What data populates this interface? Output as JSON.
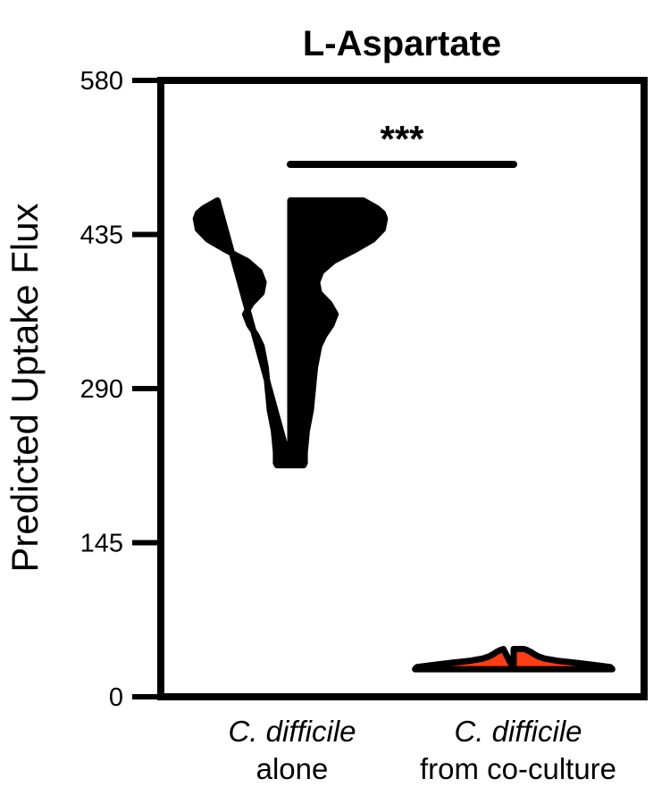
{
  "chart_data": {
    "type": "violin",
    "title": "L-Aspartate",
    "ylabel": "Predicted Uptake Flux",
    "xlabel": "",
    "ylim": [
      0,
      580
    ],
    "yticks": [
      "580",
      "435",
      "290",
      "145",
      "0"
    ],
    "categories": [
      {
        "line1": "C. difficile",
        "line2": "alone"
      },
      {
        "line1": "C. difficile",
        "line2": "from co-culture"
      }
    ],
    "series": [
      {
        "fill": "#000000",
        "range": [
          218,
          467
        ],
        "profile": [
          [
            467,
            0.71
          ],
          [
            460,
            0.84
          ],
          [
            455,
            0.9
          ],
          [
            450,
            0.92
          ],
          [
            440,
            0.9
          ],
          [
            430,
            0.8
          ],
          [
            420,
            0.62
          ],
          [
            410,
            0.42
          ],
          [
            400,
            0.3
          ],
          [
            390,
            0.26
          ],
          [
            380,
            0.28
          ],
          [
            370,
            0.38
          ],
          [
            360,
            0.44
          ],
          [
            350,
            0.4
          ],
          [
            340,
            0.33
          ],
          [
            330,
            0.28
          ],
          [
            320,
            0.26
          ],
          [
            310,
            0.24
          ],
          [
            300,
            0.23
          ],
          [
            290,
            0.22
          ],
          [
            280,
            0.21
          ],
          [
            270,
            0.2
          ],
          [
            260,
            0.18
          ],
          [
            250,
            0.16
          ],
          [
            240,
            0.15
          ],
          [
            230,
            0.14
          ],
          [
            220,
            0.14
          ],
          [
            218,
            0.13
          ]
        ]
      },
      {
        "fill": "#ff3c14",
        "range": [
          26,
          45
        ],
        "profile": [
          [
            26,
            0.96
          ],
          [
            28,
            0.94
          ],
          [
            30,
            0.78
          ],
          [
            32,
            0.6
          ],
          [
            34,
            0.42
          ],
          [
            36,
            0.3
          ],
          [
            38,
            0.24
          ],
          [
            40,
            0.2
          ],
          [
            42,
            0.17
          ],
          [
            44,
            0.13
          ],
          [
            45,
            0.1
          ]
        ]
      }
    ],
    "significance": "***"
  }
}
